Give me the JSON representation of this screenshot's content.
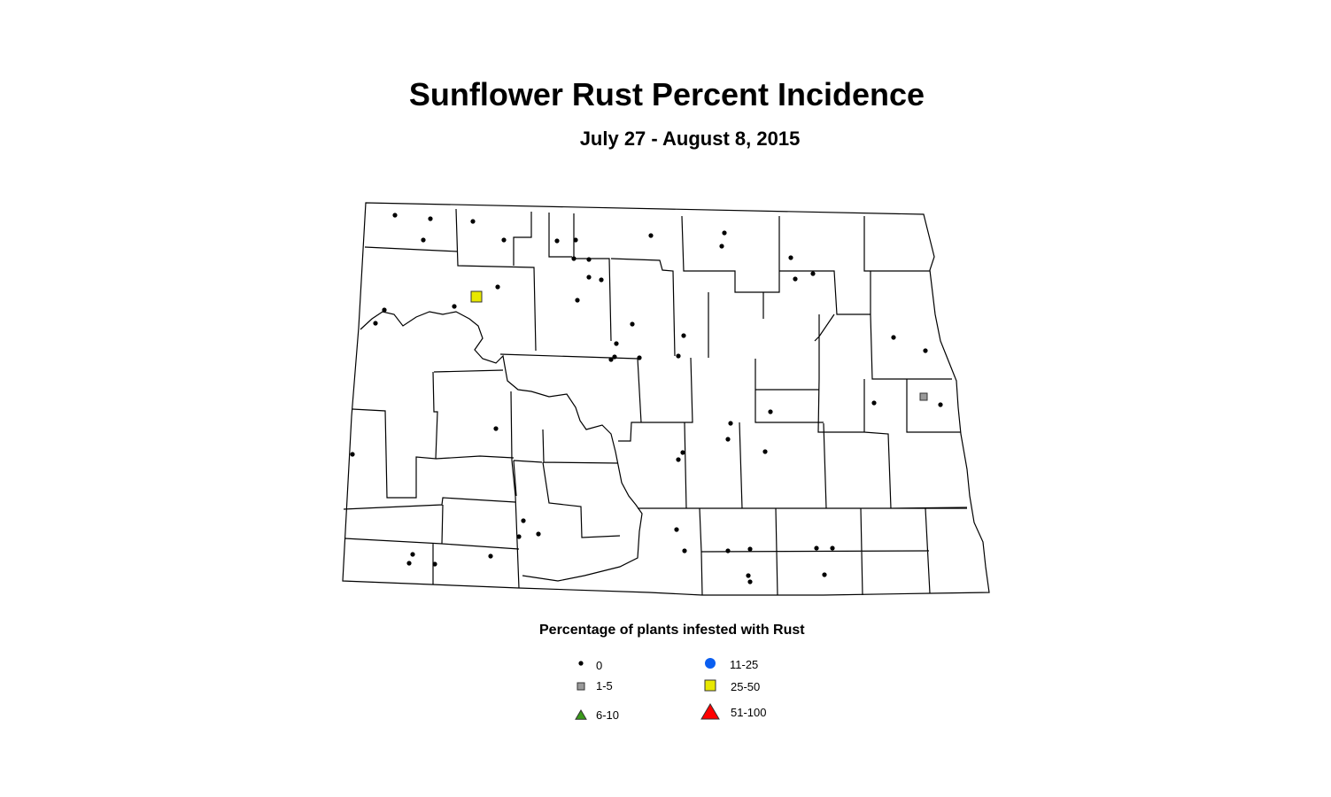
{
  "title": "Sunflower Rust Percent Incidence",
  "subtitle": "July 27 - August 8, 2015",
  "legend": {
    "title": "Percentage of plants infested with Rust",
    "items": [
      {
        "label": "0",
        "symbol": "small-dot",
        "color": "#000000"
      },
      {
        "label": "1-5",
        "symbol": "square",
        "color": "#9a9a9a"
      },
      {
        "label": "6-10",
        "symbol": "triangle",
        "color": "#3a9a1a"
      },
      {
        "label": "11-25",
        "symbol": "circle",
        "color": "#0a5ef0"
      },
      {
        "label": "25-50",
        "symbol": "square",
        "color": "#e8e800"
      },
      {
        "label": "51-100",
        "symbol": "triangle",
        "color": "#ff0000"
      }
    ]
  }
}
